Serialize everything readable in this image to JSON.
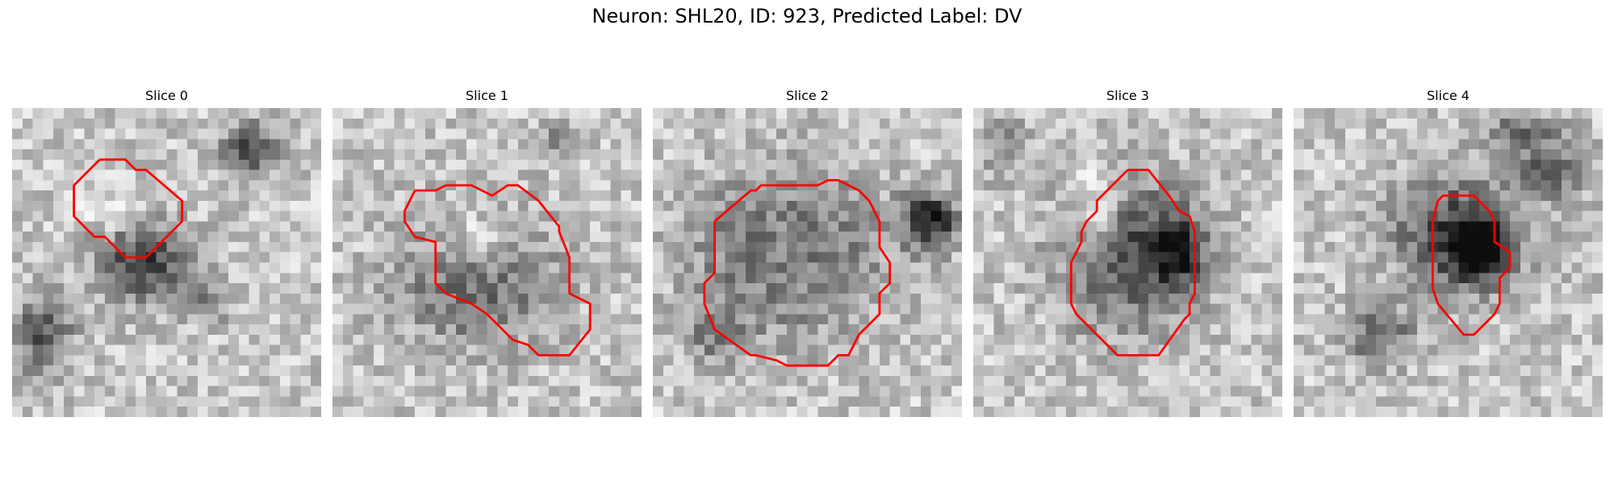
{
  "figure": {
    "title": "Neuron: SHL20, ID: 923, Predicted Label: DV"
  },
  "panels": [
    {
      "title": "Slice 0"
    },
    {
      "title": "Slice 1"
    },
    {
      "title": "Slice 2"
    },
    {
      "title": "Slice 3"
    },
    {
      "title": "Slice 4"
    }
  ],
  "colors": {
    "contour": "#ff0000",
    "background": "#ffffff"
  }
}
